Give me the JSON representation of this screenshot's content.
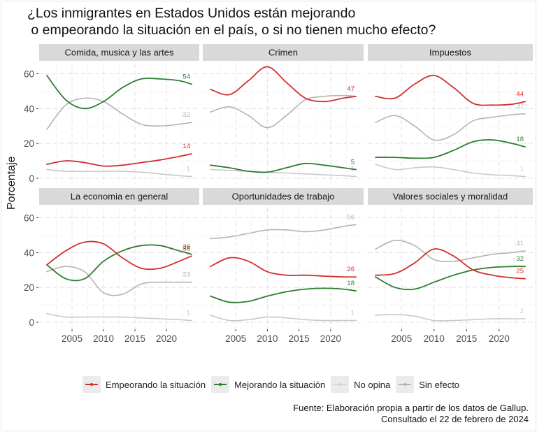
{
  "title_line1": "¿Los inmigrantes en Estados Unidos están mejorando",
  "title_line2": " o empeorando la situación en el país, o si no tienen mucho efecto?",
  "caption_line1": "Fuente: Elaboración propia a partir de los datos de Gallup.",
  "caption_line2": "Consultado el 22 de febrero de 2024",
  "colors": {
    "empeorando": "#d22f2f",
    "mejorando": "#2e7d2e",
    "no_opina": "#c8c8c8",
    "sin_efecto": "#b4b4b4",
    "panel_bg": "#ffffff",
    "strip_bg": "#d9d9d9",
    "grid": "#e0e0e0"
  },
  "legend": [
    {
      "key": "empeorando",
      "label": "Empeorando la situación"
    },
    {
      "key": "mejorando",
      "label": "Mejorando la situación"
    },
    {
      "key": "no_opina",
      "label": "No opina"
    },
    {
      "key": "sin_efecto",
      "label": "Sin efecto"
    }
  ],
  "chart_data": {
    "type": "line",
    "title": "¿Los inmigrantes en Estados Unidos están mejorando o empeorando la situación en el país, o si no tienen mucho efecto?",
    "xlabel": "",
    "ylabel": "Porcentaje",
    "xlim": [
      2001,
      2024
    ],
    "ylim": [
      0,
      65
    ],
    "x_ticks": [
      2005,
      2010,
      2015,
      2020
    ],
    "y_ticks": [
      0,
      20,
      40,
      60
    ],
    "grid": true,
    "legend_position": "bottom",
    "x": [
      2001,
      2004,
      2007,
      2010,
      2013,
      2016,
      2019,
      2022,
      2024
    ],
    "panels": [
      {
        "title": "Comida, musica y las artes",
        "series": [
          {
            "name": "Empeorando la situación",
            "key": "empeorando",
            "values": [
              8,
              10,
              9,
              7,
              7.5,
              9,
              10.5,
              12.5,
              14
            ],
            "end_label": "14"
          },
          {
            "name": "Mejorando la situación",
            "key": "mejorando",
            "values": [
              59,
              45,
              40,
              44,
              52,
              57,
              57,
              56,
              54
            ],
            "end_label": "54"
          },
          {
            "name": "No opina",
            "key": "no_opina",
            "values": [
              5,
              4,
              4,
              4,
              4,
              3.5,
              2.5,
              1.5,
              1
            ],
            "end_label": "1"
          },
          {
            "name": "Sin efecto",
            "key": "sin_efecto",
            "values": [
              28,
              42,
              46,
              44,
              37,
              31,
              30,
              31,
              32
            ],
            "end_label": "32"
          }
        ]
      },
      {
        "title": "Crimen",
        "series": [
          {
            "name": "Empeorando la situación",
            "key": "empeorando",
            "values": [
              51,
              48,
              56,
              64,
              55,
              46,
              44,
              46,
              47
            ],
            "end_label": "47"
          },
          {
            "name": "Mejorando la situación",
            "key": "mejorando",
            "values": [
              7.5,
              6,
              4,
              3.5,
              6,
              8.5,
              7.5,
              6,
              5
            ],
            "end_label": "5"
          },
          {
            "name": "No opina",
            "key": "no_opina",
            "values": [
              5,
              4.5,
              4,
              3.5,
              3,
              2.5,
              2,
              1.5,
              1
            ],
            "end_label": "1"
          },
          {
            "name": "Sin efecto",
            "key": "sin_efecto",
            "values": [
              38,
              41,
              36,
              29,
              36,
              45,
              47,
              47.5,
              47
            ],
            "end_label": "47"
          }
        ]
      },
      {
        "title": "Impuestos",
        "series": [
          {
            "name": "Empeorando la situación",
            "key": "empeorando",
            "values": [
              47,
              46,
              54,
              59,
              52,
              43,
              42,
              42.5,
              44
            ],
            "end_label": "44"
          },
          {
            "name": "Mejorando la situación",
            "key": "mejorando",
            "values": [
              12,
              12,
              11.5,
              12,
              16,
              21,
              22,
              20,
              18
            ],
            "end_label": "18"
          },
          {
            "name": "No opina",
            "key": "no_opina",
            "values": [
              8,
              5,
              6,
              6.5,
              5,
              3,
              2,
              1.5,
              1
            ],
            "end_label": "1"
          },
          {
            "name": "Sin efecto",
            "key": "sin_efecto",
            "values": [
              32,
              36,
              30,
              22,
              25,
              33,
              35,
              36.5,
              37
            ],
            "end_label": "37"
          }
        ]
      },
      {
        "title": "La economia en general",
        "series": [
          {
            "name": "Empeorando la situación",
            "key": "empeorando",
            "values": [
              33,
              41,
              46,
              45,
              37,
              31,
              31,
              35,
              38
            ],
            "end_label": "38"
          },
          {
            "name": "Mejorando la situación",
            "key": "mejorando",
            "values": [
              33,
              25,
              25,
              35,
              41,
              44,
              44,
              41,
              39
            ],
            "end_label": "39"
          },
          {
            "name": "No opina",
            "key": "no_opina",
            "values": [
              5,
              3,
              3,
              3,
              3,
              2.5,
              2,
              1.5,
              1
            ],
            "end_label": "1"
          },
          {
            "name": "Sin efecto",
            "key": "sin_efecto",
            "values": [
              29,
              32,
              29,
              17,
              16,
              22,
              23,
              23,
              23
            ],
            "end_label": "23"
          }
        ]
      },
      {
        "title": "Oportunidades de trabajo",
        "series": [
          {
            "name": "Empeorando la situación",
            "key": "empeorando",
            "values": [
              32,
              37,
              35,
              29,
              27,
              27,
              26.5,
              26,
              26
            ],
            "end_label": "26"
          },
          {
            "name": "Mejorando la situación",
            "key": "mejorando",
            "values": [
              15,
              11.5,
              12,
              15,
              17.5,
              19,
              19.5,
              19,
              18
            ],
            "end_label": "18"
          },
          {
            "name": "No opina",
            "key": "no_opina",
            "values": [
              4,
              1,
              1.5,
              3,
              2.5,
              1.5,
              1,
              1,
              1
            ],
            "end_label": "1"
          },
          {
            "name": "Sin efecto",
            "key": "sin_efecto",
            "values": [
              48,
              49,
              51,
              53,
              53,
              52,
              53,
              55,
              56
            ],
            "end_label": "56"
          }
        ]
      },
      {
        "title": "Valores sociales y moralidad",
        "series": [
          {
            "name": "Empeorando la situación",
            "key": "empeorando",
            "values": [
              27,
              28,
              34,
              42,
              38,
              30,
              27,
              25.5,
              25
            ],
            "end_label": "25"
          },
          {
            "name": "Mejorando la situación",
            "key": "mejorando",
            "values": [
              26,
              20,
              19,
              23,
              27,
              30,
              31.5,
              32,
              32
            ],
            "end_label": "32"
          },
          {
            "name": "No opina",
            "key": "no_opina",
            "values": [
              4,
              4.5,
              3.5,
              1,
              1,
              1.5,
              2,
              2,
              2
            ],
            "end_label": "2"
          },
          {
            "name": "Sin efecto",
            "key": "sin_efecto",
            "values": [
              42,
              47,
              44,
              36,
              35,
              37,
              39,
              40,
              41
            ],
            "end_label": "41"
          }
        ]
      }
    ]
  }
}
